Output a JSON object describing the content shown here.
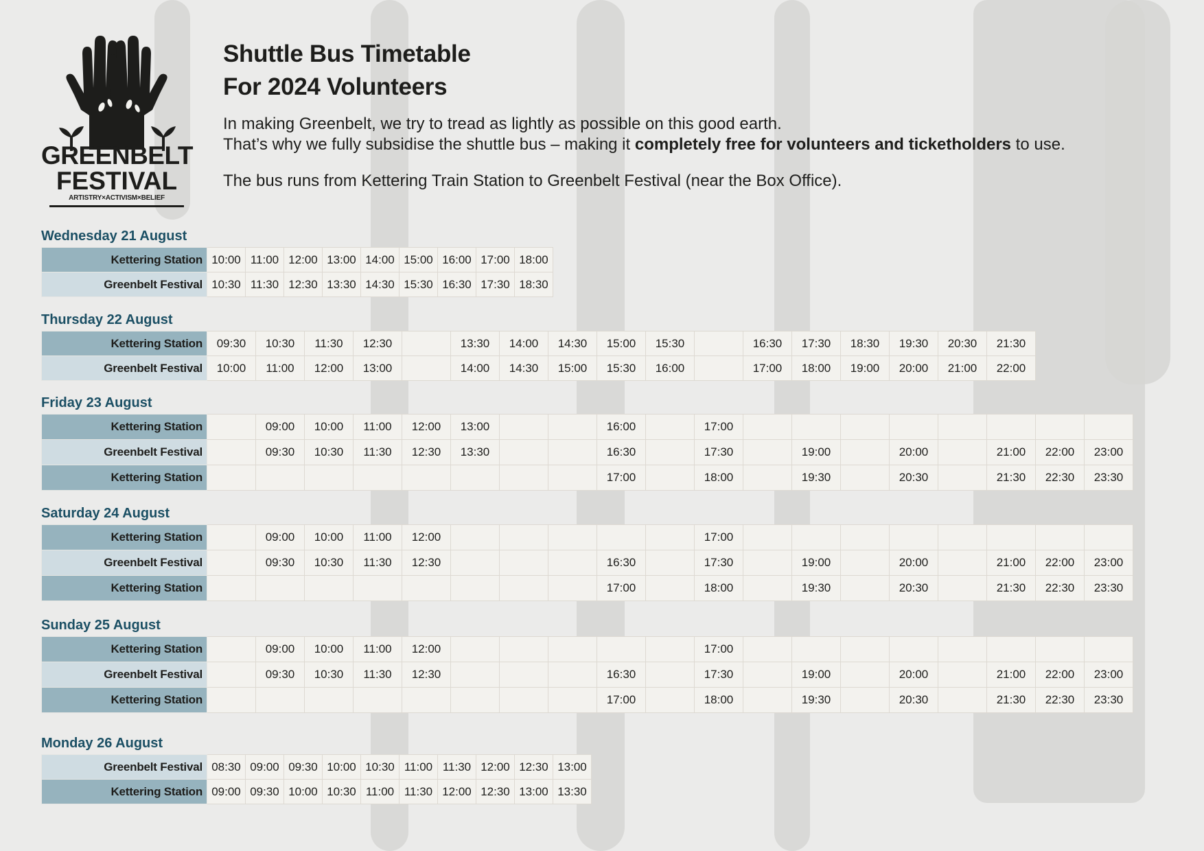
{
  "brand": {
    "name": "GREENBELT FESTIVAL",
    "name_line1": "GREENBELT",
    "name_line2": "FESTIVAL",
    "tagline": "ARTISTRY×ACTIVISM×BELIEF",
    "logo_icon": "raised-hands-with-seedlings-icon"
  },
  "header": {
    "title_line1": "Shuttle Bus Timetable",
    "title_line2": "For 2024 Volunteers"
  },
  "intro": {
    "line1": "In making Greenbelt, we try to tread as lightly as possible on this good earth.",
    "line2_pre": "That’s why we fully subsidise the shuttle bus – making it ",
    "line2_bold": "completely free for volunteers and ticketholders",
    "line2_post": " to use.",
    "line3": "The bus runs from Kettering Train Station to Greenbelt Festival (near the Box Office)."
  },
  "colors": {
    "day_title": "#1b4f64",
    "kettering_label_bg": "#96b3be",
    "greenbelt_label_bg": "#cfdce2",
    "cell_bg": "#f3f2ee",
    "page_bg": "#ebebea"
  },
  "schedule": [
    {
      "day": "Wednesday 21 August",
      "rows": [
        {
          "stop": "Kettering Station",
          "times": [
            "10:00",
            "11:00",
            "12:00",
            "13:00",
            "14:00",
            "15:00",
            "16:00",
            "17:00",
            "18:00"
          ]
        },
        {
          "stop": "Greenbelt Festival",
          "times": [
            "10:30",
            "11:30",
            "12:30",
            "13:30",
            "14:30",
            "15:30",
            "16:30",
            "17:30",
            "18:30"
          ]
        }
      ]
    },
    {
      "day": "Thursday 22 August",
      "rows": [
        {
          "stop": "Kettering Station",
          "times": [
            "09:30",
            "10:30",
            "11:30",
            "12:30",
            "",
            "13:30",
            "14:00",
            "14:30",
            "15:00",
            "15:30",
            "",
            "16:30",
            "17:30",
            "18:30",
            "19:30",
            "20:30",
            "21:30"
          ]
        },
        {
          "stop": "Greenbelt Festival",
          "times": [
            "10:00",
            "11:00",
            "12:00",
            "13:00",
            "",
            "14:00",
            "14:30",
            "15:00",
            "15:30",
            "16:00",
            "",
            "17:00",
            "18:00",
            "19:00",
            "20:00",
            "21:00",
            "22:00"
          ]
        }
      ]
    },
    {
      "day": "Friday 23 August",
      "rows": [
        {
          "stop": "Kettering Station",
          "times": [
            "",
            "09:00",
            "10:00",
            "11:00",
            "12:00",
            "13:00",
            "",
            "",
            "16:00",
            "",
            "17:00",
            "",
            "",
            "",
            "",
            "",
            "",
            "",
            ""
          ]
        },
        {
          "stop": "Greenbelt Festival",
          "times": [
            "",
            "09:30",
            "10:30",
            "11:30",
            "12:30",
            "13:30",
            "",
            "",
            "16:30",
            "",
            "17:30",
            "",
            "19:00",
            "",
            "20:00",
            "",
            "21:00",
            "22:00",
            "23:00"
          ]
        },
        {
          "stop": "Kettering Station",
          "times": [
            "",
            "",
            "",
            "",
            "",
            "",
            "",
            "",
            "17:00",
            "",
            "18:00",
            "",
            "19:30",
            "",
            "20:30",
            "",
            "21:30",
            "22:30",
            "23:30"
          ]
        }
      ]
    },
    {
      "day": "Saturday 24 August",
      "rows": [
        {
          "stop": "Kettering Station",
          "times": [
            "",
            "09:00",
            "10:00",
            "11:00",
            "12:00",
            "",
            "",
            "",
            "",
            "",
            "17:00",
            "",
            "",
            "",
            "",
            "",
            "",
            "",
            ""
          ]
        },
        {
          "stop": "Greenbelt Festival",
          "times": [
            "",
            "09:30",
            "10:30",
            "11:30",
            "12:30",
            "",
            "",
            "",
            "16:30",
            "",
            "17:30",
            "",
            "19:00",
            "",
            "20:00",
            "",
            "21:00",
            "22:00",
            "23:00"
          ]
        },
        {
          "stop": "Kettering Station",
          "times": [
            "",
            "",
            "",
            "",
            "",
            "",
            "",
            "",
            "17:00",
            "",
            "18:00",
            "",
            "19:30",
            "",
            "20:30",
            "",
            "21:30",
            "22:30",
            "23:30"
          ]
        }
      ]
    },
    {
      "day": "Sunday 25 August",
      "rows": [
        {
          "stop": "Kettering Station",
          "times": [
            "",
            "09:00",
            "10:00",
            "11:00",
            "12:00",
            "",
            "",
            "",
            "",
            "",
            "17:00",
            "",
            "",
            "",
            "",
            "",
            "",
            "",
            ""
          ]
        },
        {
          "stop": "Greenbelt Festival",
          "times": [
            "",
            "09:30",
            "10:30",
            "11:30",
            "12:30",
            "",
            "",
            "",
            "16:30",
            "",
            "17:30",
            "",
            "19:00",
            "",
            "20:00",
            "",
            "21:00",
            "22:00",
            "23:00"
          ]
        },
        {
          "stop": "Kettering Station",
          "times": [
            "",
            "",
            "",
            "",
            "",
            "",
            "",
            "",
            "17:00",
            "",
            "18:00",
            "",
            "19:30",
            "",
            "20:30",
            "",
            "21:30",
            "22:30",
            "23:30"
          ]
        }
      ]
    },
    {
      "day": "Monday 26 August",
      "rows": [
        {
          "stop": "Greenbelt Festival",
          "times": [
            "08:30",
            "09:00",
            "09:30",
            "10:00",
            "10:30",
            "11:00",
            "11:30",
            "12:00",
            "12:30",
            "13:00"
          ]
        },
        {
          "stop": "Kettering Station",
          "times": [
            "09:00",
            "09:30",
            "10:00",
            "10:30",
            "11:00",
            "11:30",
            "12:00",
            "12:30",
            "13:00",
            "13:30"
          ]
        }
      ]
    }
  ]
}
